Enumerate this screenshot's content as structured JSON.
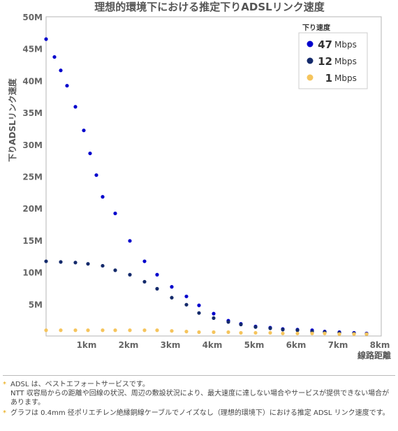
{
  "chart_data": {
    "type": "scatter",
    "title": "理想的環境下における推定下りADSLリンク速度",
    "ylabel": "下りADSLリンク速度",
    "xlabel": "線路距離",
    "x_ticks": [
      "1km",
      "2km",
      "3km",
      "4km",
      "5km",
      "6km",
      "7km",
      "8km"
    ],
    "y_ticks": [
      "5M",
      "10M",
      "15M",
      "20M",
      "25M",
      "30M",
      "35M",
      "40M",
      "45M",
      "50M"
    ],
    "xlim": [
      0,
      8
    ],
    "ylim": [
      0,
      50
    ],
    "grid": false,
    "legend_title": "下り速度",
    "legend_position": "top-right",
    "series": [
      {
        "name": "47Mbps",
        "legend_value": "47",
        "legend_unit": "Mbps",
        "color": "#0000cc",
        "x": [
          0.0,
          0.2,
          0.35,
          0.5,
          0.7,
          0.9,
          1.05,
          1.2,
          1.35,
          1.65,
          2.0,
          2.35,
          2.65,
          3.0,
          3.35,
          3.65,
          4.0,
          4.35,
          4.65,
          5.0,
          5.35,
          5.65,
          6.0,
          6.35,
          6.65,
          7.0,
          7.35,
          7.65
        ],
        "y": [
          46.5,
          43.7,
          41.6,
          39.2,
          35.9,
          32.2,
          28.6,
          25.2,
          21.8,
          19.2,
          14.9,
          11.7,
          9.6,
          7.7,
          6.2,
          4.8,
          3.5,
          2.4,
          1.9,
          1.5,
          1.3,
          1.1,
          1.0,
          0.9,
          0.7,
          0.6,
          0.5,
          0.4
        ]
      },
      {
        "name": "12Mbps",
        "legend_value": "12",
        "legend_unit": "Mbps",
        "color": "#142a6b",
        "x": [
          0.0,
          0.35,
          0.7,
          1.0,
          1.35,
          1.65,
          2.0,
          2.35,
          2.65,
          3.0,
          3.35,
          3.65,
          4.0,
          4.35,
          4.65,
          5.0,
          5.35,
          5.65,
          6.0,
          6.35,
          6.65,
          7.0,
          7.35,
          7.65
        ],
        "y": [
          11.7,
          11.6,
          11.5,
          11.3,
          11.0,
          10.3,
          9.6,
          8.5,
          7.4,
          6.0,
          4.9,
          3.6,
          2.8,
          2.2,
          1.8,
          1.4,
          1.2,
          1.0,
          0.9,
          0.7,
          0.6,
          0.5,
          0.4,
          0.3
        ]
      },
      {
        "name": "1Mbps",
        "legend_value": "1",
        "legend_unit": "Mbps",
        "color": "#f5c45c",
        "x": [
          0.0,
          0.35,
          0.7,
          1.0,
          1.35,
          1.65,
          2.0,
          2.35,
          2.65,
          3.0,
          3.35,
          3.65,
          4.0,
          4.35,
          4.65,
          5.0,
          5.35,
          5.65,
          6.0,
          6.35,
          6.65,
          7.0,
          7.35,
          7.65
        ],
        "y": [
          0.9,
          0.9,
          0.9,
          0.9,
          0.9,
          0.9,
          0.9,
          0.9,
          0.9,
          0.8,
          0.7,
          0.6,
          0.6,
          0.6,
          0.5,
          0.5,
          0.5,
          0.4,
          0.4,
          0.4,
          0.4,
          0.3,
          0.3,
          0.3
        ]
      }
    ]
  },
  "notes": [
    {
      "mark": "*",
      "lines": [
        "ADSL は、ベストエフォートサービスです。",
        "NTT 収容局からの距離や回線の状況、周辺の敷設状況により、最大速度に達しない場合やサービスが提供できない場合があります。"
      ]
    },
    {
      "mark": "*",
      "lines": [
        "グラフは 0.4mm 径ポリエチレン絶縁銅線ケーブルでノイズなし（理想的環境下）における推定 ADSL リンク速度です。"
      ]
    }
  ]
}
